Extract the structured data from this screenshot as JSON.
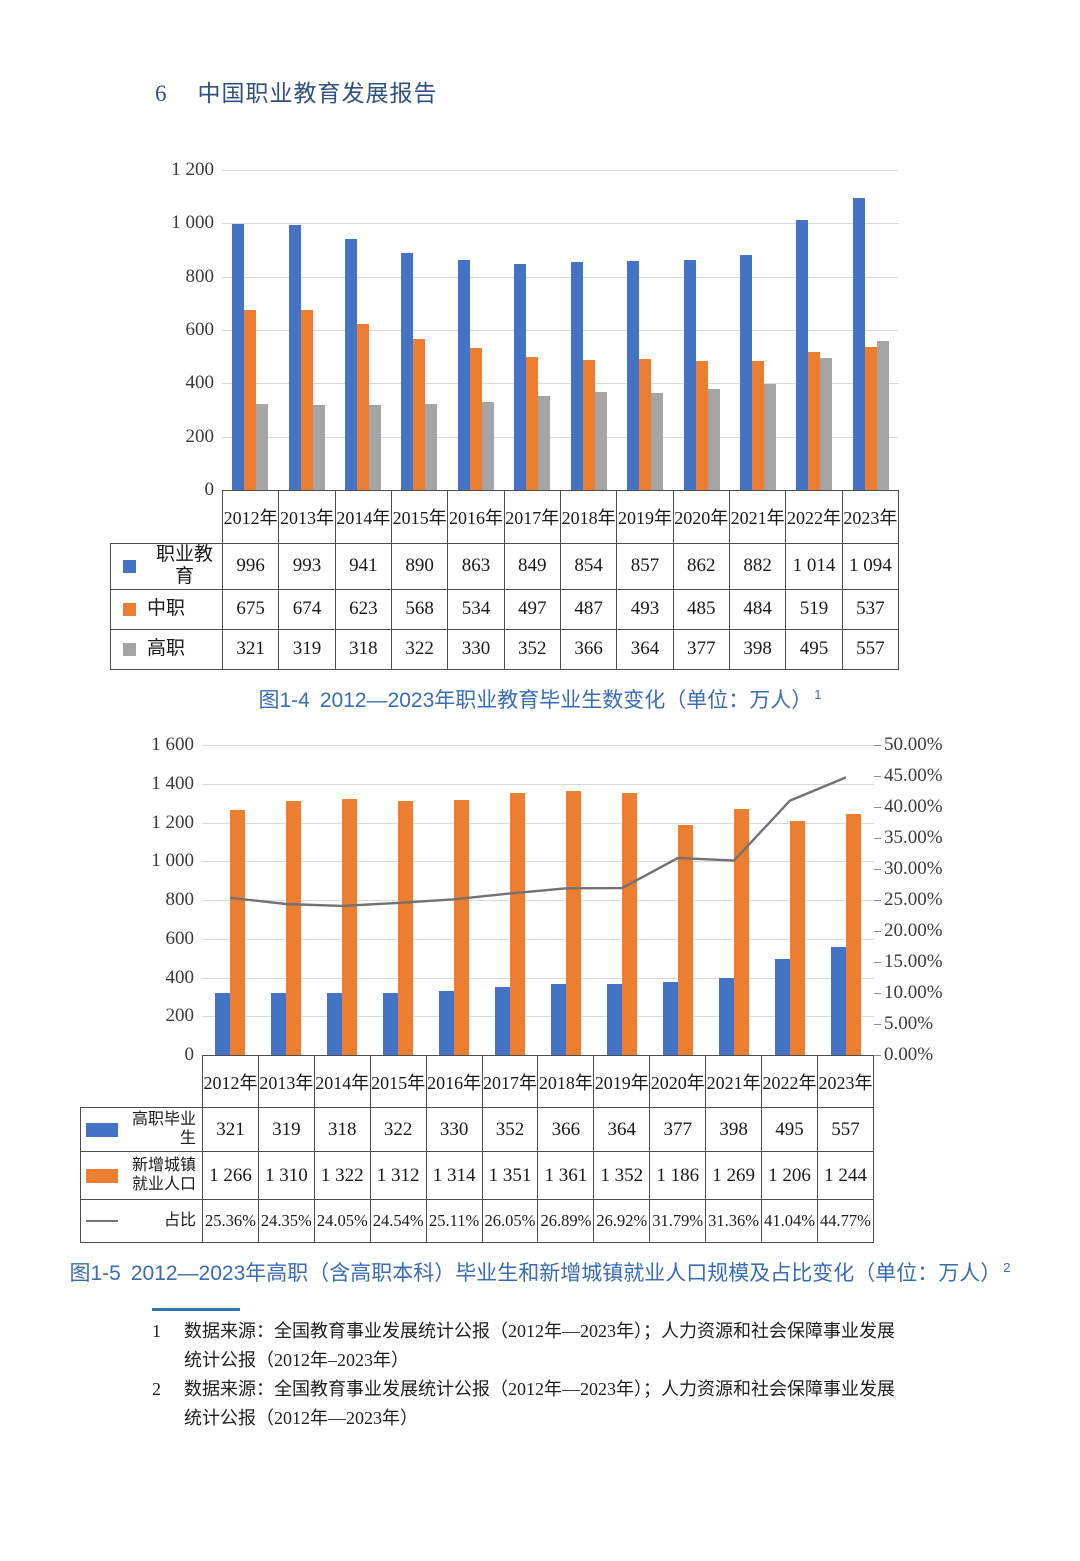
{
  "header": {
    "page_number": "6",
    "title": "中国职业教育发展报告"
  },
  "colors": {
    "bar_blue": "#4472C4",
    "bar_orange": "#ED7D31",
    "bar_gray": "#A5A5A5",
    "line_gray": "#767171",
    "caption_blue": "#3A6CB3",
    "header_blue": "#31517F",
    "footnote_rule_blue": "#2E74B5"
  },
  "figures": [
    {
      "caption": {
        "label": "图1-4",
        "text": "2012—2023年职业教育毕业生数变化（单位：万人）",
        "footnote_ref": "1"
      }
    },
    {
      "caption": {
        "label": "图1-5",
        "text": "2012—2023年高职（含高职本科）毕业生和新增城镇就业人口规模及占比变化（单位：万人）",
        "footnote_ref": "2"
      }
    }
  ],
  "chart_data": [
    {
      "type": "bar",
      "title": "图1-4 2012—2023年职业教育毕业生数变化（单位：万人）",
      "unit": "万人",
      "categories": [
        "2012年",
        "2013年",
        "2014年",
        "2015年",
        "2016年",
        "2017年",
        "2018年",
        "2019年",
        "2020年",
        "2021年",
        "2022年",
        "2023年"
      ],
      "series": [
        {
          "name": "职业教育",
          "type": "bar",
          "color": "#4472C4",
          "values": [
            996,
            993,
            941,
            890,
            863,
            849,
            854,
            857,
            862,
            882,
            1014,
            1094
          ]
        },
        {
          "name": "中职",
          "type": "bar",
          "color": "#ED7D31",
          "values": [
            675,
            674,
            623,
            568,
            534,
            497,
            487,
            493,
            485,
            484,
            519,
            537
          ]
        },
        {
          "name": "高职",
          "type": "bar",
          "color": "#A5A5A5",
          "values": [
            321,
            319,
            318,
            322,
            330,
            352,
            366,
            364,
            377,
            398,
            495,
            557
          ]
        }
      ],
      "xlabel": "",
      "ylabel": "",
      "ylim": [
        0,
        1200
      ],
      "ytick_step": 200,
      "grid": true,
      "legend_position": "data-table-left",
      "data_table": true
    },
    {
      "type": "bar+line",
      "title": "图1-5 2012—2023年高职（含高职本科）毕业生和新增城镇就业人口规模及占比变化（单位：万人）",
      "unit": "万人",
      "categories": [
        "2012年",
        "2013年",
        "2014年",
        "2015年",
        "2016年",
        "2017年",
        "2018年",
        "2019年",
        "2020年",
        "2021年",
        "2022年",
        "2023年"
      ],
      "series": [
        {
          "name": "高职毕业生",
          "type": "bar",
          "axis": "left",
          "color": "#4472C4",
          "values": [
            321,
            319,
            318,
            322,
            330,
            352,
            366,
            364,
            377,
            398,
            495,
            557
          ]
        },
        {
          "name": "新增城镇就业人口",
          "type": "bar",
          "axis": "left",
          "color": "#ED7D31",
          "values": [
            1266,
            1310,
            1322,
            1312,
            1314,
            1351,
            1361,
            1352,
            1186,
            1269,
            1206,
            1244
          ]
        },
        {
          "name": "占比",
          "type": "line",
          "axis": "right",
          "color": "#767171",
          "format": "percent",
          "values": [
            25.36,
            24.35,
            24.05,
            24.54,
            25.11,
            26.05,
            26.89,
            26.92,
            31.79,
            31.36,
            41.04,
            44.77
          ]
        }
      ],
      "xlabel": "",
      "left_ylim": [
        0,
        1600
      ],
      "left_ytick_step": 200,
      "right_ylim": [
        0,
        50
      ],
      "right_ytick_step": 5,
      "right_suffix": "%",
      "grid": true,
      "legend_position": "data-table-left",
      "data_table": true
    }
  ],
  "footnotes": {
    "items": [
      {
        "marker": "1",
        "line1": "数据来源：全国教育事业发展统计公报（2012年—2023年）；人力资源和社会保障事业发展",
        "line2": "统计公报（2012年–2023年）"
      },
      {
        "marker": "2",
        "line1": "数据来源：全国教育事业发展统计公报（2012年—2023年）；人力资源和社会保障事业发展",
        "line2": "统计公报（2012年—2023年）"
      }
    ]
  }
}
